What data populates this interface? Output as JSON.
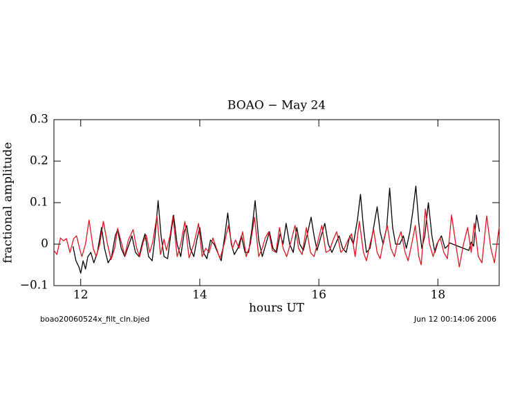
{
  "chart_data": {
    "type": "line",
    "title": "BOAO − May 24",
    "x_label": "hours UT",
    "y_label": "fractional amplitude",
    "footer_left": "boao20060524x_filt_cln.bjed",
    "footer_right": "Jun 12 00:14:06 2006",
    "xlim": [
      11.55,
      19.03
    ],
    "xticks": [
      12,
      14,
      16,
      18
    ],
    "ylim": [
      -0.1,
      0.3
    ],
    "yticks": [
      {
        "value": -0.1,
        "label": "−0.1"
      },
      0,
      0.1,
      0.2,
      0.3
    ],
    "series": [
      {
        "color": "#000000",
        "x": [
          11.87,
          11.92,
          11.97,
          12.0,
          12.04,
          12.08,
          12.12,
          12.17,
          12.22,
          12.28,
          12.35,
          12.4,
          12.46,
          12.52,
          12.58,
          12.62,
          12.68,
          12.74,
          12.8,
          12.86,
          12.92,
          12.98,
          13.03,
          13.08,
          13.14,
          13.2,
          13.25,
          13.3,
          13.35,
          13.4,
          13.46,
          13.51,
          13.56,
          13.62,
          13.68,
          13.74,
          13.78,
          13.84,
          13.9,
          13.95,
          14.0,
          14.06,
          14.12,
          14.18,
          14.24,
          14.3,
          14.36,
          14.42,
          14.47,
          14.53,
          14.58,
          14.64,
          14.7,
          14.76,
          14.82,
          14.88,
          14.93,
          14.99,
          15.05,
          15.11,
          15.17,
          15.23,
          15.29,
          15.35,
          15.4,
          15.45,
          15.51,
          15.57,
          15.63,
          15.68,
          15.74,
          15.8,
          15.87,
          15.92,
          15.97,
          16.04,
          16.1,
          16.16,
          16.22,
          16.28,
          16.34,
          16.4,
          16.46,
          16.52,
          16.58,
          16.65,
          16.7,
          16.75,
          16.8,
          16.86,
          16.92,
          16.98,
          17.03,
          17.08,
          17.14,
          17.19,
          17.24,
          17.29,
          17.36,
          17.42,
          17.47,
          17.53,
          17.58,
          17.63,
          17.68,
          17.73,
          17.78,
          17.84,
          17.9,
          17.95,
          18.0,
          18.06,
          18.12,
          18.16,
          18.2,
          18.25,
          18.52,
          18.56,
          18.6,
          18.65,
          18.7
        ],
        "values": [
          -0.005,
          -0.04,
          -0.055,
          -0.07,
          -0.04,
          -0.06,
          -0.03,
          -0.02,
          -0.045,
          -0.02,
          0.04,
          -0.01,
          -0.045,
          -0.03,
          0.02,
          0.035,
          -0.01,
          -0.03,
          -0.005,
          0.02,
          -0.02,
          -0.03,
          0.0,
          0.025,
          -0.03,
          -0.04,
          0.02,
          0.105,
          0.02,
          -0.03,
          -0.035,
          0.02,
          0.07,
          0.0,
          -0.03,
          0.03,
          0.045,
          -0.01,
          -0.03,
          0.01,
          0.04,
          -0.02,
          -0.035,
          0.01,
          0.0,
          -0.02,
          -0.04,
          0.02,
          0.075,
          0.0,
          -0.025,
          -0.01,
          0.02,
          -0.02,
          -0.02,
          0.04,
          0.105,
          0.01,
          -0.03,
          0.0,
          0.03,
          -0.01,
          -0.02,
          0.025,
          0.0,
          0.05,
          0.0,
          -0.02,
          0.04,
          0.0,
          -0.015,
          0.02,
          0.065,
          0.02,
          -0.015,
          0.02,
          0.05,
          0.0,
          -0.02,
          0.0,
          0.02,
          -0.01,
          -0.02,
          0.02,
          0.0,
          0.06,
          0.12,
          0.04,
          -0.02,
          -0.01,
          0.04,
          0.09,
          0.03,
          0.0,
          0.04,
          0.135,
          0.04,
          0.0,
          0.0,
          0.02,
          -0.01,
          0.03,
          0.08,
          0.14,
          0.05,
          -0.01,
          0.02,
          0.1,
          0.02,
          -0.02,
          0.005,
          0.02,
          -0.01,
          -0.005,
          0.003,
          0.0,
          -0.015,
          0.005,
          -0.005,
          0.07,
          0.03
        ]
      },
      {
        "color": "#e0141e",
        "x": [
          11.55,
          11.6,
          11.66,
          11.71,
          11.76,
          11.82,
          11.88,
          11.93,
          11.98,
          12.02,
          12.08,
          12.14,
          12.21,
          12.26,
          12.32,
          12.38,
          12.45,
          12.51,
          12.57,
          12.62,
          12.69,
          12.74,
          12.8,
          12.88,
          12.94,
          12.99,
          13.05,
          13.1,
          13.16,
          13.21,
          13.28,
          13.34,
          13.4,
          13.44,
          13.5,
          13.55,
          13.62,
          13.68,
          13.75,
          13.82,
          13.9,
          13.98,
          14.04,
          14.1,
          14.16,
          14.22,
          14.28,
          14.34,
          14.41,
          14.48,
          14.55,
          14.6,
          14.66,
          14.72,
          14.78,
          14.85,
          14.92,
          14.99,
          15.05,
          15.1,
          15.16,
          15.22,
          15.28,
          15.34,
          15.4,
          15.46,
          15.53,
          15.6,
          15.66,
          15.72,
          15.79,
          15.86,
          15.92,
          15.99,
          16.05,
          16.12,
          16.18,
          16.24,
          16.3,
          16.37,
          16.43,
          16.49,
          16.55,
          16.61,
          16.68,
          16.75,
          16.8,
          16.86,
          16.92,
          16.98,
          17.03,
          17.09,
          17.15,
          17.21,
          17.27,
          17.33,
          17.38,
          17.45,
          17.5,
          17.56,
          17.62,
          17.68,
          17.72,
          17.79,
          17.86,
          17.92,
          17.98,
          18.04,
          18.1,
          18.16,
          18.23,
          18.3,
          18.36,
          18.43,
          18.5,
          18.56,
          18.61,
          18.68,
          18.74,
          18.82,
          18.89,
          18.95,
          19.03
        ],
        "values": [
          -0.015,
          -0.025,
          0.015,
          0.008,
          0.013,
          -0.02,
          0.013,
          0.02,
          -0.01,
          -0.03,
          0.0,
          0.058,
          -0.01,
          -0.03,
          0.0,
          0.055,
          0.0,
          -0.037,
          -0.01,
          0.038,
          0.0,
          -0.028,
          0.01,
          0.035,
          -0.01,
          -0.03,
          0.005,
          0.022,
          -0.02,
          0.005,
          0.068,
          -0.025,
          0.012,
          -0.015,
          0.02,
          0.068,
          -0.03,
          0.0,
          0.055,
          -0.033,
          0.0,
          0.05,
          -0.03,
          -0.01,
          -0.02,
          0.015,
          -0.01,
          -0.035,
          0.0,
          0.045,
          -0.01,
          0.01,
          -0.01,
          0.03,
          -0.03,
          0.0,
          0.065,
          -0.03,
          -0.01,
          0.015,
          0.03,
          -0.015,
          -0.02,
          0.04,
          -0.01,
          -0.03,
          0.005,
          0.045,
          -0.01,
          -0.025,
          0.04,
          -0.02,
          -0.03,
          0.01,
          0.045,
          -0.02,
          -0.015,
          0.01,
          0.03,
          -0.02,
          -0.01,
          0.01,
          0.025,
          -0.03,
          0.055,
          -0.02,
          -0.04,
          0.0,
          0.035,
          -0.02,
          -0.035,
          0.01,
          0.045,
          -0.01,
          -0.03,
          0.01,
          0.03,
          -0.02,
          -0.04,
          0.0,
          0.045,
          -0.03,
          -0.05,
          0.085,
          0.0,
          -0.03,
          0.0,
          0.015,
          -0.02,
          -0.035,
          0.07,
          0.0,
          -0.055,
          0.0,
          0.04,
          -0.02,
          0.05,
          -0.03,
          -0.045,
          0.068,
          -0.01,
          -0.045,
          0.042
        ]
      }
    ]
  }
}
